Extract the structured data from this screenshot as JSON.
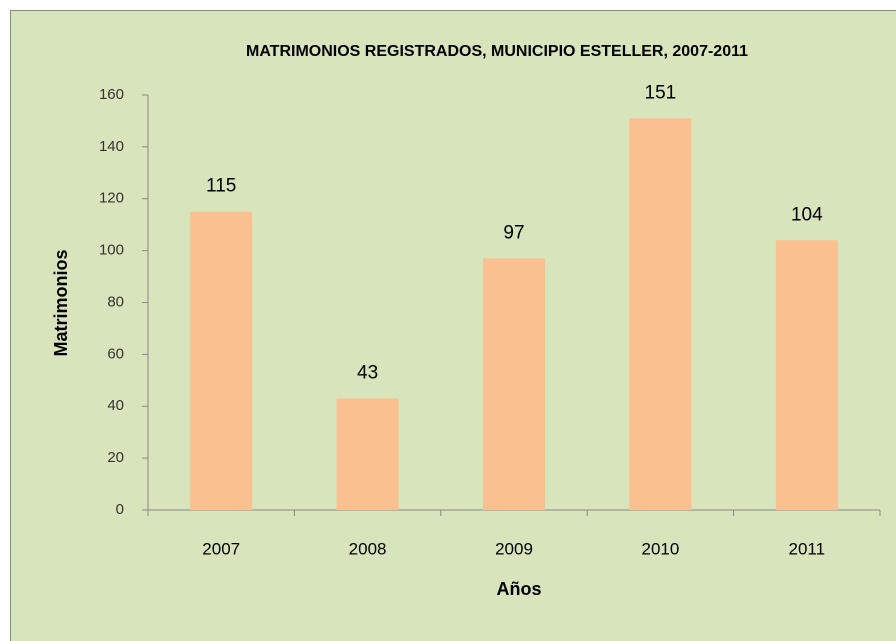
{
  "chart_data": {
    "type": "bar",
    "title": "MATRIMONIOS REGISTRADOS, MUNICIPIO ESTELLER, 2007-2011",
    "x_label": "Años",
    "y_label": "Matrimonios",
    "categories": [
      "2007",
      "2008",
      "2009",
      "2010",
      "2011"
    ],
    "values": [
      115,
      43,
      97,
      151,
      104
    ],
    "color": "#fac090",
    "ylim": [
      0,
      160
    ],
    "yticks": [
      0,
      20,
      40,
      60,
      80,
      100,
      120,
      140,
      160
    ],
    "grid": false
  }
}
